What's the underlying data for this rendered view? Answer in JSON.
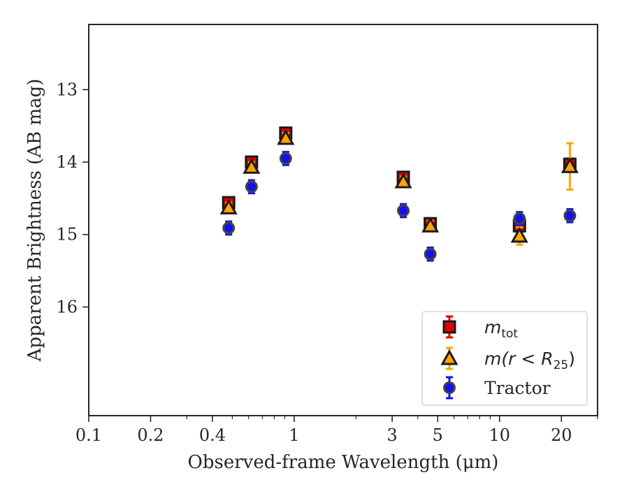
{
  "chart_data": {
    "type": "scatter",
    "xlabel": "Observed-frame Wavelength (μm)",
    "ylabel": "Apparent Brightness (AB mag)",
    "xscale": "log",
    "xlim": [
      0.1,
      30
    ],
    "ylim": [
      17.5,
      12.1
    ],
    "y_inverted": true,
    "x_ticks": [
      {
        "value": 0.1,
        "label": "0.1"
      },
      {
        "value": 0.2,
        "label": "0.2"
      },
      {
        "value": 0.4,
        "label": "0.4"
      },
      {
        "value": 1,
        "label": "1"
      },
      {
        "value": 3,
        "label": "3"
      },
      {
        "value": 5,
        "label": "5"
      },
      {
        "value": 10,
        "label": "10"
      },
      {
        "value": 20,
        "label": "20"
      }
    ],
    "y_ticks": [
      13,
      14,
      15,
      16
    ],
    "legend_location": "lower-right",
    "series": [
      {
        "name": "m_tot",
        "legend_main": "m",
        "legend_sub": "tot",
        "marker": "square",
        "color": "#e00000",
        "edge": "#1a1a1a",
        "points": [
          {
            "x": 0.48,
            "y": 14.56,
            "err": 0.07
          },
          {
            "x": 0.62,
            "y": 14.0,
            "err": 0.07
          },
          {
            "x": 0.91,
            "y": 13.6,
            "err": 0.07
          },
          {
            "x": 3.4,
            "y": 14.21,
            "err": 0.07
          },
          {
            "x": 4.6,
            "y": 14.85,
            "err": 0.07
          },
          {
            "x": 12.5,
            "y": 14.88,
            "err": 0.1
          },
          {
            "x": 22.0,
            "y": 14.03,
            "err": 0.08
          }
        ]
      },
      {
        "name": "m(r < R_25)",
        "legend_main": "m(r < R",
        "legend_sub": "25",
        "legend_tail": ")",
        "marker": "triangle",
        "color": "#ffa500",
        "edge": "#1a1a1a",
        "points": [
          {
            "x": 0.48,
            "y": 14.63,
            "err": 0.07
          },
          {
            "x": 0.62,
            "y": 14.07,
            "err": 0.07
          },
          {
            "x": 0.91,
            "y": 13.67,
            "err": 0.07
          },
          {
            "x": 3.4,
            "y": 14.27,
            "err": 0.07
          },
          {
            "x": 4.6,
            "y": 14.88,
            "err": 0.07
          },
          {
            "x": 12.5,
            "y": 15.02,
            "err": 0.12
          },
          {
            "x": 22.0,
            "y": 14.06,
            "err": 0.32
          }
        ]
      },
      {
        "name": "Tractor",
        "legend_main": "Tractor",
        "marker": "circle",
        "color": "#1010f0",
        "edge": "#444444",
        "points": [
          {
            "x": 0.48,
            "y": 14.91,
            "err": 0.09
          },
          {
            "x": 0.62,
            "y": 14.34,
            "err": 0.09
          },
          {
            "x": 0.91,
            "y": 13.95,
            "err": 0.09
          },
          {
            "x": 3.4,
            "y": 14.67,
            "err": 0.09
          },
          {
            "x": 4.6,
            "y": 15.27,
            "err": 0.09
          },
          {
            "x": 12.5,
            "y": 14.78,
            "err": 0.09
          },
          {
            "x": 22.0,
            "y": 14.74,
            "err": 0.09
          }
        ]
      }
    ]
  }
}
